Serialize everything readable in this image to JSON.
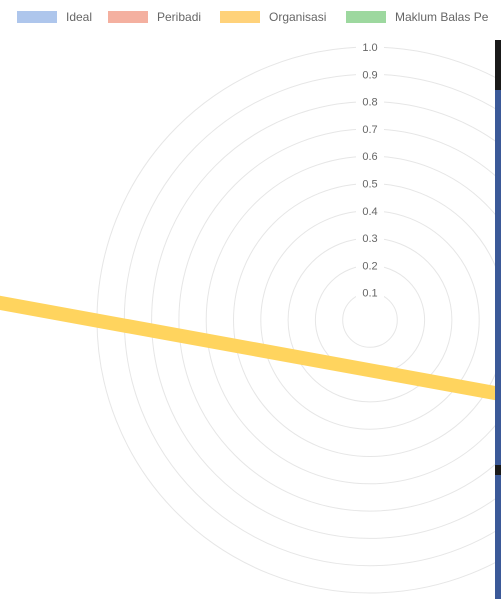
{
  "chart_data": {
    "type": "radar",
    "r_axis": {
      "min": 0,
      "max": 1.0,
      "step": 0.1
    },
    "tick_labels": [
      "0.1",
      "0.2",
      "0.3",
      "0.4",
      "0.5",
      "0.6",
      "0.7",
      "0.8",
      "0.9",
      "1.0"
    ],
    "grid": true,
    "legend_position": "top",
    "series": [
      {
        "name": "Ideal",
        "color": "#aec6ec"
      },
      {
        "name": "Peribadi",
        "color": "#f4b0a0"
      },
      {
        "name": "Organisasi",
        "color": "#ffd27a"
      },
      {
        "name": "Maklum Balas Pe",
        "color": "#9dd89f"
      }
    ]
  },
  "colors": {
    "grid": "#e6e6e6",
    "organisasi_line": "#ffd45e",
    "edge_dark": "#1a1a1a",
    "edge_blue": "#3b5998"
  }
}
